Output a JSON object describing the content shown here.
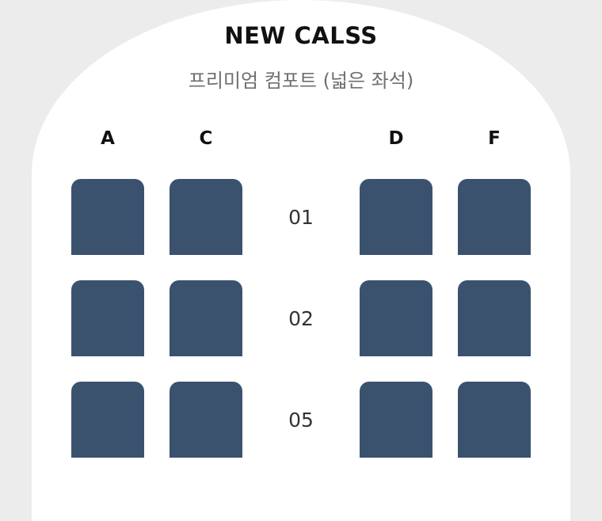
{
  "header": {
    "title": "NEW CALSS",
    "subtitle": "프리미엄 컴포트 (넓은 좌석)"
  },
  "columns": [
    "A",
    "C",
    "D",
    "F"
  ],
  "rows": [
    {
      "number": "01",
      "seats": [
        "A",
        "C",
        "D",
        "F"
      ]
    },
    {
      "number": "02",
      "seats": [
        "A",
        "C",
        "D",
        "F"
      ]
    },
    {
      "number": "05",
      "seats": [
        "A",
        "C",
        "D",
        "F"
      ]
    }
  ],
  "colors": {
    "background": "#ececec",
    "cabin": "#ffffff",
    "seat": "#3b526f"
  }
}
